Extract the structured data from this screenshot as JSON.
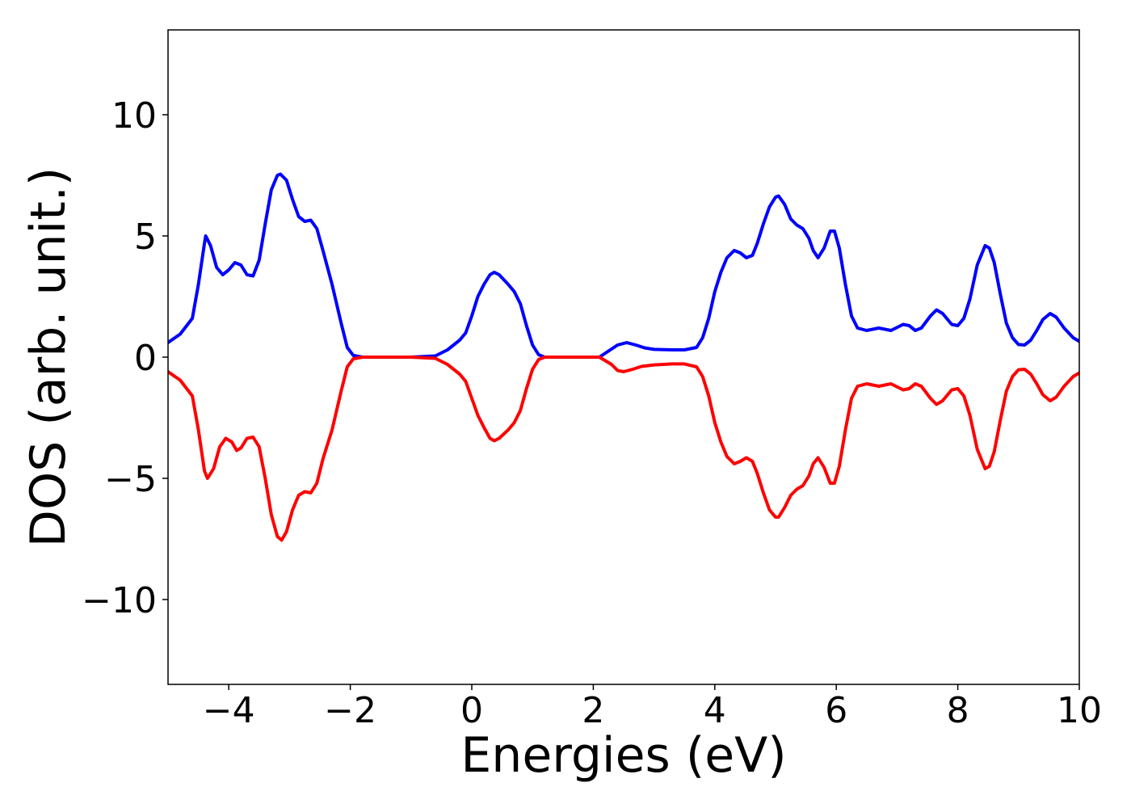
{
  "chart_data": {
    "type": "line",
    "title": "",
    "xlabel": "Energies (eV)",
    "ylabel": "DOS (arb. unit.)",
    "xlim": [
      -5,
      10
    ],
    "ylim": [
      -13.5,
      13.5
    ],
    "xticks": [
      -4,
      -2,
      0,
      2,
      4,
      6,
      8,
      10
    ],
    "xtick_labels": [
      "−4",
      "−2",
      "0",
      "2",
      "4",
      "6",
      "8",
      "10"
    ],
    "yticks": [
      10,
      5,
      0,
      -5,
      -10
    ],
    "ytick_labels": [
      "10",
      "5",
      "0",
      "−5",
      "−10"
    ],
    "grid": false,
    "legend": "none",
    "series": [
      {
        "color": "#0000ff",
        "points": [
          [
            -5.0,
            0.6
          ],
          [
            -4.8,
            0.95
          ],
          [
            -4.6,
            1.6
          ],
          [
            -4.5,
            3.0
          ],
          [
            -4.4,
            4.7
          ],
          [
            -4.38,
            5.0
          ],
          [
            -4.3,
            4.6
          ],
          [
            -4.2,
            3.7
          ],
          [
            -4.1,
            3.4
          ],
          [
            -4.0,
            3.6
          ],
          [
            -3.9,
            3.9
          ],
          [
            -3.8,
            3.8
          ],
          [
            -3.7,
            3.4
          ],
          [
            -3.6,
            3.35
          ],
          [
            -3.5,
            4.0
          ],
          [
            -3.4,
            5.5
          ],
          [
            -3.3,
            6.9
          ],
          [
            -3.2,
            7.5
          ],
          [
            -3.15,
            7.55
          ],
          [
            -3.05,
            7.3
          ],
          [
            -2.95,
            6.5
          ],
          [
            -2.85,
            5.8
          ],
          [
            -2.75,
            5.6
          ],
          [
            -2.65,
            5.65
          ],
          [
            -2.55,
            5.3
          ],
          [
            -2.45,
            4.4
          ],
          [
            -2.3,
            3.0
          ],
          [
            -2.15,
            1.4
          ],
          [
            -2.05,
            0.4
          ],
          [
            -1.95,
            0.07
          ],
          [
            -1.8,
            0.0
          ],
          [
            -1.0,
            0.0
          ],
          [
            -0.6,
            0.05
          ],
          [
            -0.4,
            0.3
          ],
          [
            -0.2,
            0.7
          ],
          [
            -0.1,
            1.0
          ],
          [
            0.0,
            1.7
          ],
          [
            0.1,
            2.5
          ],
          [
            0.2,
            3.0
          ],
          [
            0.3,
            3.4
          ],
          [
            0.37,
            3.5
          ],
          [
            0.45,
            3.4
          ],
          [
            0.6,
            3.0
          ],
          [
            0.7,
            2.7
          ],
          [
            0.8,
            2.2
          ],
          [
            0.9,
            1.3
          ],
          [
            1.0,
            0.5
          ],
          [
            1.1,
            0.1
          ],
          [
            1.2,
            0.0
          ],
          [
            2.1,
            0.0
          ],
          [
            2.25,
            0.25
          ],
          [
            2.4,
            0.5
          ],
          [
            2.55,
            0.6
          ],
          [
            2.7,
            0.5
          ],
          [
            2.85,
            0.38
          ],
          [
            3.0,
            0.32
          ],
          [
            3.3,
            0.3
          ],
          [
            3.5,
            0.3
          ],
          [
            3.7,
            0.4
          ],
          [
            3.8,
            0.8
          ],
          [
            3.9,
            1.6
          ],
          [
            4.0,
            2.7
          ],
          [
            4.1,
            3.5
          ],
          [
            4.2,
            4.1
          ],
          [
            4.32,
            4.4
          ],
          [
            4.42,
            4.3
          ],
          [
            4.52,
            4.1
          ],
          [
            4.62,
            4.2
          ],
          [
            4.7,
            4.7
          ],
          [
            4.8,
            5.5
          ],
          [
            4.9,
            6.2
          ],
          [
            5.0,
            6.6
          ],
          [
            5.05,
            6.65
          ],
          [
            5.15,
            6.3
          ],
          [
            5.25,
            5.7
          ],
          [
            5.35,
            5.45
          ],
          [
            5.45,
            5.3
          ],
          [
            5.55,
            4.9
          ],
          [
            5.62,
            4.4
          ],
          [
            5.7,
            4.1
          ],
          [
            5.8,
            4.5
          ],
          [
            5.9,
            5.2
          ],
          [
            5.97,
            5.2
          ],
          [
            6.05,
            4.5
          ],
          [
            6.15,
            3.0
          ],
          [
            6.25,
            1.7
          ],
          [
            6.35,
            1.2
          ],
          [
            6.5,
            1.1
          ],
          [
            6.7,
            1.2
          ],
          [
            6.9,
            1.1
          ],
          [
            7.1,
            1.35
          ],
          [
            7.2,
            1.3
          ],
          [
            7.3,
            1.1
          ],
          [
            7.4,
            1.2
          ],
          [
            7.55,
            1.7
          ],
          [
            7.65,
            1.95
          ],
          [
            7.75,
            1.8
          ],
          [
            7.9,
            1.35
          ],
          [
            8.0,
            1.3
          ],
          [
            8.1,
            1.6
          ],
          [
            8.2,
            2.4
          ],
          [
            8.32,
            3.8
          ],
          [
            8.45,
            4.6
          ],
          [
            8.52,
            4.5
          ],
          [
            8.6,
            3.9
          ],
          [
            8.7,
            2.6
          ],
          [
            8.8,
            1.4
          ],
          [
            8.9,
            0.8
          ],
          [
            9.0,
            0.52
          ],
          [
            9.1,
            0.5
          ],
          [
            9.2,
            0.7
          ],
          [
            9.3,
            1.1
          ],
          [
            9.4,
            1.55
          ],
          [
            9.52,
            1.8
          ],
          [
            9.62,
            1.65
          ],
          [
            9.75,
            1.2
          ],
          [
            9.9,
            0.8
          ],
          [
            10.0,
            0.65
          ]
        ]
      },
      {
        "color": "#ff0000",
        "points": [
          [
            -5.0,
            -0.6
          ],
          [
            -4.8,
            -0.95
          ],
          [
            -4.6,
            -1.6
          ],
          [
            -4.5,
            -3.0
          ],
          [
            -4.4,
            -4.7
          ],
          [
            -4.35,
            -5.0
          ],
          [
            -4.25,
            -4.6
          ],
          [
            -4.15,
            -3.7
          ],
          [
            -4.05,
            -3.35
          ],
          [
            -3.95,
            -3.5
          ],
          [
            -3.87,
            -3.85
          ],
          [
            -3.8,
            -3.75
          ],
          [
            -3.7,
            -3.35
          ],
          [
            -3.6,
            -3.3
          ],
          [
            -3.5,
            -3.7
          ],
          [
            -3.4,
            -5.0
          ],
          [
            -3.3,
            -6.5
          ],
          [
            -3.2,
            -7.4
          ],
          [
            -3.13,
            -7.55
          ],
          [
            -3.05,
            -7.2
          ],
          [
            -2.95,
            -6.3
          ],
          [
            -2.85,
            -5.7
          ],
          [
            -2.75,
            -5.55
          ],
          [
            -2.65,
            -5.6
          ],
          [
            -2.55,
            -5.2
          ],
          [
            -2.45,
            -4.2
          ],
          [
            -2.3,
            -3.0
          ],
          [
            -2.15,
            -1.4
          ],
          [
            -2.05,
            -0.4
          ],
          [
            -1.95,
            -0.07
          ],
          [
            -1.8,
            0.0
          ],
          [
            -1.0,
            0.0
          ],
          [
            -0.6,
            -0.05
          ],
          [
            -0.4,
            -0.3
          ],
          [
            -0.2,
            -0.7
          ],
          [
            -0.1,
            -1.0
          ],
          [
            0.0,
            -1.7
          ],
          [
            0.1,
            -2.4
          ],
          [
            0.2,
            -2.9
          ],
          [
            0.3,
            -3.35
          ],
          [
            0.37,
            -3.45
          ],
          [
            0.45,
            -3.35
          ],
          [
            0.6,
            -3.0
          ],
          [
            0.7,
            -2.7
          ],
          [
            0.8,
            -2.2
          ],
          [
            0.9,
            -1.3
          ],
          [
            1.0,
            -0.5
          ],
          [
            1.1,
            -0.1
          ],
          [
            1.2,
            0.0
          ],
          [
            2.1,
            0.0
          ],
          [
            2.3,
            -0.3
          ],
          [
            2.4,
            -0.55
          ],
          [
            2.5,
            -0.6
          ],
          [
            2.65,
            -0.5
          ],
          [
            2.8,
            -0.38
          ],
          [
            3.0,
            -0.32
          ],
          [
            3.3,
            -0.28
          ],
          [
            3.5,
            -0.28
          ],
          [
            3.7,
            -0.4
          ],
          [
            3.8,
            -0.8
          ],
          [
            3.9,
            -1.6
          ],
          [
            4.0,
            -2.7
          ],
          [
            4.1,
            -3.5
          ],
          [
            4.2,
            -4.1
          ],
          [
            4.32,
            -4.4
          ],
          [
            4.42,
            -4.3
          ],
          [
            4.52,
            -4.15
          ],
          [
            4.62,
            -4.3
          ],
          [
            4.7,
            -4.8
          ],
          [
            4.8,
            -5.6
          ],
          [
            4.9,
            -6.3
          ],
          [
            5.0,
            -6.6
          ],
          [
            5.05,
            -6.6
          ],
          [
            5.15,
            -6.2
          ],
          [
            5.25,
            -5.7
          ],
          [
            5.35,
            -5.45
          ],
          [
            5.45,
            -5.3
          ],
          [
            5.55,
            -4.9
          ],
          [
            5.62,
            -4.4
          ],
          [
            5.7,
            -4.15
          ],
          [
            5.8,
            -4.55
          ],
          [
            5.9,
            -5.2
          ],
          [
            5.97,
            -5.2
          ],
          [
            6.05,
            -4.5
          ],
          [
            6.15,
            -3.0
          ],
          [
            6.25,
            -1.7
          ],
          [
            6.35,
            -1.2
          ],
          [
            6.5,
            -1.1
          ],
          [
            6.7,
            -1.2
          ],
          [
            6.9,
            -1.1
          ],
          [
            7.1,
            -1.35
          ],
          [
            7.2,
            -1.3
          ],
          [
            7.3,
            -1.1
          ],
          [
            7.4,
            -1.2
          ],
          [
            7.55,
            -1.7
          ],
          [
            7.65,
            -1.95
          ],
          [
            7.75,
            -1.8
          ],
          [
            7.9,
            -1.35
          ],
          [
            8.0,
            -1.3
          ],
          [
            8.1,
            -1.6
          ],
          [
            8.2,
            -2.4
          ],
          [
            8.32,
            -3.8
          ],
          [
            8.45,
            -4.6
          ],
          [
            8.52,
            -4.5
          ],
          [
            8.6,
            -3.9
          ],
          [
            8.7,
            -2.6
          ],
          [
            8.8,
            -1.4
          ],
          [
            8.9,
            -0.8
          ],
          [
            9.0,
            -0.52
          ],
          [
            9.1,
            -0.5
          ],
          [
            9.2,
            -0.7
          ],
          [
            9.3,
            -1.1
          ],
          [
            9.4,
            -1.55
          ],
          [
            9.52,
            -1.8
          ],
          [
            9.62,
            -1.65
          ],
          [
            9.75,
            -1.2
          ],
          [
            9.9,
            -0.8
          ],
          [
            10.0,
            -0.65
          ]
        ]
      }
    ]
  }
}
